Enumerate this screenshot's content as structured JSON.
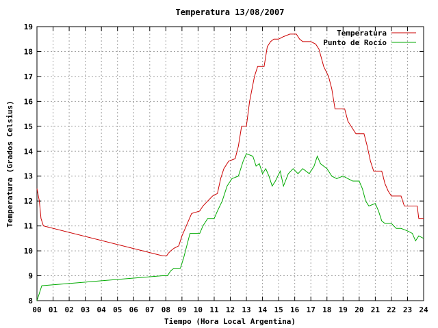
{
  "chart_data": {
    "type": "line",
    "title": "Temperatura 13/08/2007",
    "xlabel": "Tiempo (Hora Local Argentina)",
    "ylabel": "Temperatura (Grados Celsius)",
    "xlim": [
      0,
      24
    ],
    "ylim": [
      8,
      19
    ],
    "xticks": [
      0,
      1,
      2,
      3,
      4,
      5,
      6,
      7,
      8,
      9,
      10,
      11,
      12,
      13,
      14,
      15,
      16,
      17,
      18,
      19,
      20,
      21,
      22,
      23,
      24
    ],
    "xtick_labels": [
      "00",
      "01",
      "02",
      "03",
      "04",
      "05",
      "06",
      "07",
      "08",
      "09",
      "10",
      "11",
      "12",
      "13",
      "14",
      "15",
      "16",
      "17",
      "18",
      "19",
      "20",
      "21",
      "22",
      "23",
      "24"
    ],
    "yticks": [
      8,
      9,
      10,
      11,
      12,
      13,
      14,
      15,
      16,
      17,
      18,
      19
    ],
    "grid": true,
    "legend_position": "top-right",
    "series": [
      {
        "name": "Temperatura",
        "color": "#cc0000",
        "points": [
          [
            0.0,
            12.5
          ],
          [
            0.15,
            12.0
          ],
          [
            0.25,
            11.3
          ],
          [
            0.4,
            11.0
          ],
          [
            7.8,
            9.8
          ],
          [
            8.05,
            9.8
          ],
          [
            8.15,
            9.9
          ],
          [
            8.3,
            10.0
          ],
          [
            8.5,
            10.1
          ],
          [
            8.8,
            10.2
          ],
          [
            9.0,
            10.6
          ],
          [
            9.2,
            10.9
          ],
          [
            9.4,
            11.2
          ],
          [
            9.6,
            11.5
          ],
          [
            10.1,
            11.6
          ],
          [
            10.3,
            11.8
          ],
          [
            10.6,
            12.0
          ],
          [
            10.9,
            12.2
          ],
          [
            11.2,
            12.3
          ],
          [
            11.4,
            12.9
          ],
          [
            11.6,
            13.3
          ],
          [
            11.9,
            13.6
          ],
          [
            12.3,
            13.7
          ],
          [
            12.5,
            14.2
          ],
          [
            12.7,
            15.0
          ],
          [
            13.0,
            15.0
          ],
          [
            13.2,
            16.0
          ],
          [
            13.5,
            17.0
          ],
          [
            13.7,
            17.4
          ],
          [
            14.1,
            17.4
          ],
          [
            14.3,
            18.2
          ],
          [
            14.5,
            18.4
          ],
          [
            14.7,
            18.5
          ],
          [
            15.0,
            18.5
          ],
          [
            15.3,
            18.6
          ],
          [
            15.7,
            18.7
          ],
          [
            16.1,
            18.7
          ],
          [
            16.3,
            18.5
          ],
          [
            16.5,
            18.4
          ],
          [
            16.7,
            18.4
          ],
          [
            17.0,
            18.4
          ],
          [
            17.3,
            18.3
          ],
          [
            17.5,
            18.1
          ],
          [
            17.8,
            17.4
          ],
          [
            18.1,
            17.0
          ],
          [
            18.3,
            16.5
          ],
          [
            18.5,
            15.7
          ],
          [
            19.1,
            15.7
          ],
          [
            19.3,
            15.2
          ],
          [
            19.6,
            14.9
          ],
          [
            19.8,
            14.7
          ],
          [
            20.3,
            14.7
          ],
          [
            20.5,
            14.2
          ],
          [
            20.7,
            13.6
          ],
          [
            20.9,
            13.2
          ],
          [
            21.4,
            13.2
          ],
          [
            21.6,
            12.7
          ],
          [
            21.8,
            12.4
          ],
          [
            22.0,
            12.2
          ],
          [
            22.6,
            12.2
          ],
          [
            22.8,
            11.8
          ],
          [
            23.6,
            11.8
          ],
          [
            23.7,
            11.3
          ],
          [
            24.0,
            11.3
          ]
        ]
      },
      {
        "name": "Punto de Rocío",
        "color": "#00aa00",
        "points": [
          [
            0.0,
            8.0
          ],
          [
            0.1,
            8.2
          ],
          [
            0.2,
            8.4
          ],
          [
            0.3,
            8.6
          ],
          [
            7.8,
            9.0
          ],
          [
            8.1,
            9.0
          ],
          [
            8.3,
            9.2
          ],
          [
            8.5,
            9.3
          ],
          [
            8.9,
            9.3
          ],
          [
            9.1,
            9.7
          ],
          [
            9.3,
            10.2
          ],
          [
            9.5,
            10.7
          ],
          [
            10.1,
            10.7
          ],
          [
            10.3,
            11.0
          ],
          [
            10.6,
            11.3
          ],
          [
            11.0,
            11.3
          ],
          [
            11.2,
            11.6
          ],
          [
            11.5,
            12.0
          ],
          [
            11.8,
            12.6
          ],
          [
            12.1,
            12.9
          ],
          [
            12.5,
            13.0
          ],
          [
            12.8,
            13.6
          ],
          [
            13.0,
            13.9
          ],
          [
            13.4,
            13.8
          ],
          [
            13.6,
            13.4
          ],
          [
            13.8,
            13.5
          ],
          [
            14.0,
            13.1
          ],
          [
            14.2,
            13.3
          ],
          [
            14.4,
            13.0
          ],
          [
            14.6,
            12.6
          ],
          [
            14.8,
            12.8
          ],
          [
            15.1,
            13.2
          ],
          [
            15.3,
            12.6
          ],
          [
            15.6,
            13.1
          ],
          [
            15.9,
            13.3
          ],
          [
            16.2,
            13.1
          ],
          [
            16.5,
            13.3
          ],
          [
            16.9,
            13.1
          ],
          [
            17.2,
            13.4
          ],
          [
            17.4,
            13.8
          ],
          [
            17.6,
            13.5
          ],
          [
            18.0,
            13.3
          ],
          [
            18.3,
            13.0
          ],
          [
            18.6,
            12.9
          ],
          [
            19.0,
            13.0
          ],
          [
            19.3,
            12.9
          ],
          [
            19.6,
            12.8
          ],
          [
            20.0,
            12.8
          ],
          [
            20.2,
            12.5
          ],
          [
            20.4,
            12.0
          ],
          [
            20.6,
            11.8
          ],
          [
            21.0,
            11.9
          ],
          [
            21.2,
            11.6
          ],
          [
            21.4,
            11.2
          ],
          [
            21.6,
            11.1
          ],
          [
            22.0,
            11.1
          ],
          [
            22.3,
            10.9
          ],
          [
            22.6,
            10.9
          ],
          [
            23.0,
            10.8
          ],
          [
            23.3,
            10.7
          ],
          [
            23.5,
            10.4
          ],
          [
            23.7,
            10.6
          ],
          [
            24.0,
            10.5
          ]
        ]
      }
    ]
  }
}
